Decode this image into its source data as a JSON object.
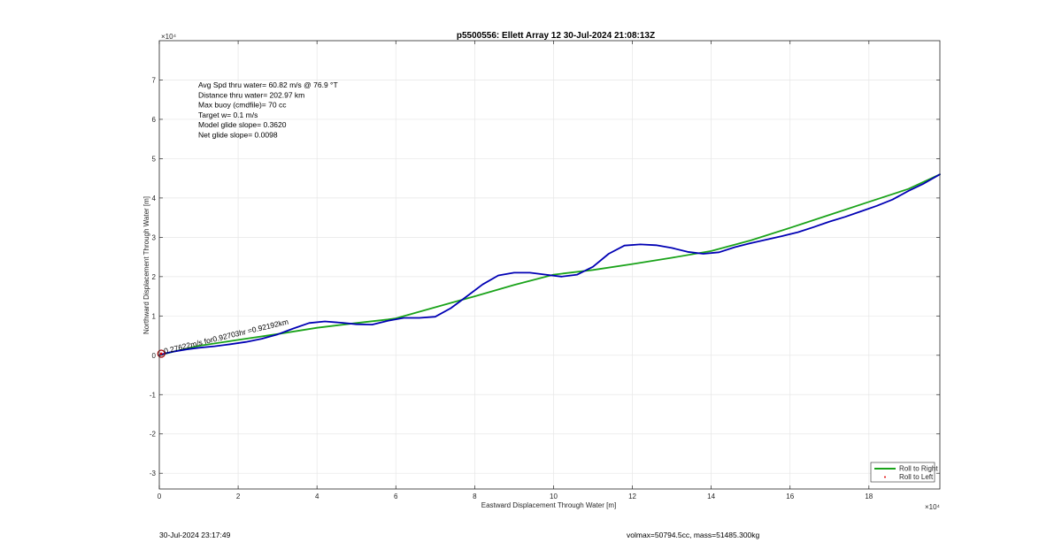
{
  "footer": {
    "timestamp": "30-Jul-2024 23:17:49",
    "mass_info": "volmax=50794.5cc, mass=51485.300kg"
  },
  "chart_data": {
    "type": "line",
    "title": "p5500556: Ellett Array 12 30-Jul-2024 21:08:13Z",
    "xlabel": "Eastward Displacement Through Water [m]",
    "ylabel": "Northward Displacement Through Water [m]",
    "x_exponent": "×10⁴",
    "y_exponent": "×10⁴",
    "xlim": [
      0,
      198000
    ],
    "ylim": [
      -34000,
      80000
    ],
    "grid": true,
    "x_ticks": [
      0,
      20000,
      40000,
      60000,
      80000,
      100000,
      120000,
      140000,
      160000,
      180000
    ],
    "x_tick_labels": [
      "0",
      "2",
      "4",
      "6",
      "8",
      "10",
      "12",
      "14",
      "16",
      "18"
    ],
    "y_ticks": [
      -30000,
      -20000,
      -10000,
      0,
      10000,
      20000,
      30000,
      40000,
      50000,
      60000,
      70000
    ],
    "y_tick_labels": [
      "-3",
      "-2",
      "-1",
      "0",
      "1",
      "2",
      "3",
      "4",
      "5",
      "6",
      "7"
    ],
    "stats_lines": [
      "Avg Spd thru water= 60.82 m/s @  76.9 °T",
      "Distance thru water= 202.97 km",
      "Max buoy (cmdfile)= 70 cc",
      "Target w= 0.1 m/s",
      "Model glide slope= 0.3620",
      "Net glide slope= 0.0098"
    ],
    "segment_annotation": "0.27622m/s for0.92703hr =0.92192km",
    "legend": {
      "placement": "bottom-right",
      "entries": [
        {
          "label": "Roll to Right",
          "color": "#1aa31a",
          "style": "line"
        },
        {
          "label": "Roll to Left",
          "color": "#e00000",
          "style": "point"
        }
      ]
    },
    "series": [
      {
        "name": "Roll to Right",
        "color": "#1aa31a",
        "x": [
          0,
          4000,
          10000,
          20000,
          30000,
          40000,
          50000,
          58000,
          60000,
          70000,
          80000,
          90000,
          100000,
          110000,
          120000,
          130000,
          140000,
          150000,
          160000,
          170000,
          180000,
          190000,
          198000
        ],
        "y": [
          0,
          1000,
          2400,
          3900,
          5400,
          7000,
          8200,
          9100,
          9400,
          12200,
          15000,
          17900,
          20500,
          21700,
          23200,
          24800,
          26500,
          29200,
          32400,
          35700,
          39000,
          42300,
          46000
        ]
      },
      {
        "name": "Roll to Left",
        "color": "#e00000",
        "x": [
          500
        ],
        "y": [
          400
        ]
      },
      {
        "name": "",
        "color": "#0000b4",
        "x": [
          0,
          1500,
          4000,
          7000,
          10000,
          14000,
          18000,
          22000,
          26000,
          30000,
          34000,
          38000,
          42000,
          46000,
          50000,
          54000,
          58000,
          62000,
          66000,
          70000,
          74000,
          78000,
          82000,
          86000,
          90000,
          94000,
          98000,
          102000,
          106000,
          110000,
          114000,
          118000,
          122000,
          126000,
          130000,
          134000,
          138000,
          142000,
          146000,
          150000,
          154000,
          158000,
          162000,
          166000,
          170000,
          174000,
          178000,
          182000,
          186000,
          190000,
          194000,
          198000
        ],
        "y": [
          0,
          500,
          1000,
          1500,
          1900,
          2300,
          2800,
          3400,
          4200,
          5300,
          6800,
          8200,
          8600,
          8300,
          7900,
          7800,
          8800,
          9500,
          9500,
          9800,
          12000,
          15000,
          18000,
          20300,
          21000,
          21000,
          20500,
          20000,
          20500,
          22500,
          25800,
          27900,
          28200,
          28000,
          27300,
          26300,
          25800,
          26200,
          27500,
          28500,
          29400,
          30300,
          31300,
          32600,
          34000,
          35200,
          36600,
          38000,
          39600,
          41800,
          43700,
          46000
        ]
      }
    ]
  }
}
